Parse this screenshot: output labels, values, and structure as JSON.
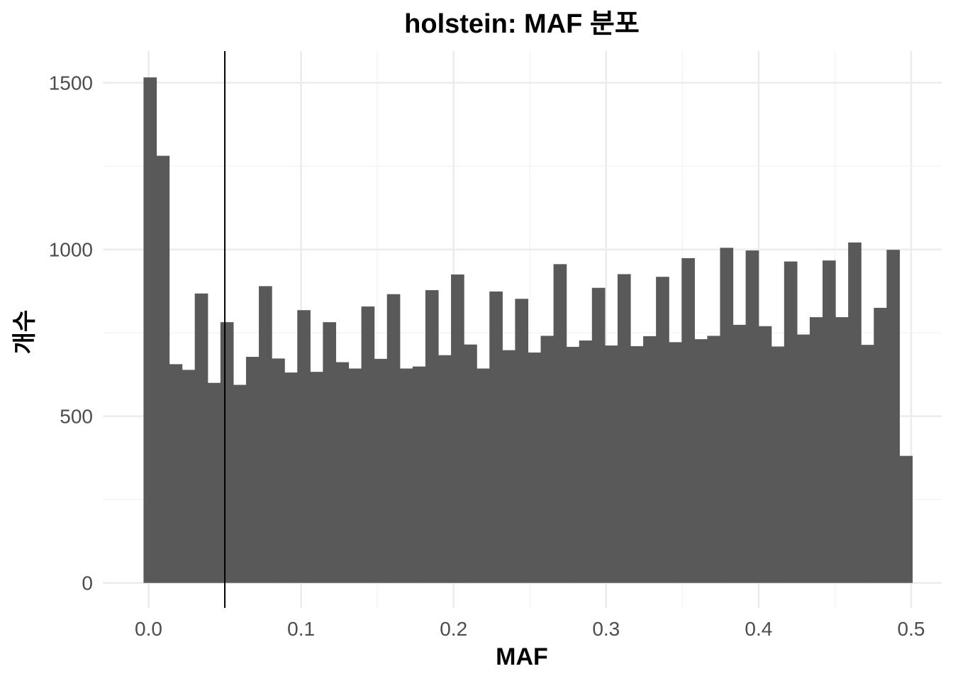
{
  "chart_data": {
    "type": "bar",
    "subtype": "histogram",
    "title": "holstein: MAF 분포",
    "xlabel": "MAF",
    "ylabel": "개수",
    "xlim": [
      -0.03,
      0.52
    ],
    "ylim": [
      -75,
      1595
    ],
    "x_ticks": [
      0.0,
      0.1,
      0.2,
      0.3,
      0.4,
      0.5
    ],
    "x_tick_labels": [
      "0.0",
      "0.1",
      "0.2",
      "0.3",
      "0.4",
      "0.5"
    ],
    "y_ticks": [
      0,
      500,
      1000,
      1500
    ],
    "y_tick_labels": [
      "0",
      "500",
      "1000",
      "1500"
    ],
    "bin_width": 0.0084,
    "bin_start": -0.0033,
    "values": [
      1516,
      1281,
      656,
      639,
      868,
      600,
      782,
      594,
      678,
      890,
      673,
      631,
      818,
      633,
      782,
      662,
      643,
      829,
      672,
      866,
      643,
      649,
      878,
      683,
      925,
      715,
      643,
      874,
      698,
      852,
      691,
      741,
      956,
      708,
      727,
      885,
      712,
      926,
      710,
      740,
      918,
      722,
      974,
      731,
      741,
      1005,
      774,
      997,
      770,
      709,
      964,
      745,
      797,
      967,
      797,
      1021,
      714,
      825,
      999,
      381
    ],
    "reference_line_x": 0.05,
    "bar_color": "#595959",
    "grid": true,
    "legend": "none"
  }
}
